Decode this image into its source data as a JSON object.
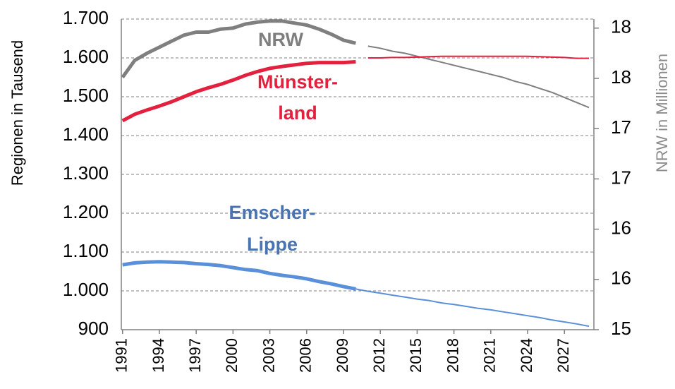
{
  "chart_data": {
    "type": "line",
    "x": [
      1991,
      1992,
      1993,
      1994,
      1995,
      1996,
      1997,
      1998,
      1999,
      2000,
      2001,
      2002,
      2003,
      2004,
      2005,
      2006,
      2007,
      2008,
      2009,
      2010,
      2011,
      2012,
      2013,
      2014,
      2015,
      2016,
      2017,
      2018,
      2019,
      2020,
      2021,
      2022,
      2023,
      2024,
      2025,
      2026,
      2027,
      2028,
      2029
    ],
    "xlim": [
      1990.9,
      2029.4
    ],
    "xticks": [
      1991,
      1994,
      1997,
      2000,
      2003,
      2006,
      2009,
      2012,
      2015,
      2018,
      2021,
      2024,
      2027
    ],
    "ylabel": "Regionen in Tausend",
    "y2label": "NRW in Millionen",
    "ylim": [
      900,
      1700
    ],
    "yticks": [
      900,
      {
        "value": 1000,
        "label": "1.000"
      },
      {
        "value": 1100,
        "label": "1.100"
      },
      {
        "value": 1200,
        "label": "1.200"
      },
      {
        "value": 1300,
        "label": "1.300"
      },
      {
        "value": 1400,
        "label": "1.400"
      },
      {
        "value": 1500,
        "label": "1.500"
      },
      {
        "value": 1600,
        "label": "1.600"
      },
      {
        "value": 1700,
        "label": "1.700"
      }
    ],
    "y2lim": [
      15,
      18.09
    ],
    "y2ticks": [
      15,
      {
        "value": 15.5,
        "label": "16"
      },
      16,
      {
        "value": 16.5,
        "label": "17"
      },
      17,
      {
        "value": 17.5,
        "label": "18"
      },
      18
    ],
    "grid": true,
    "series": [
      {
        "label_lines": [
          "NRW"
        ],
        "color": "#7f7f7f",
        "label_color": "#7f7f7f",
        "axis": "y2",
        "values": [
          17.51,
          17.68,
          17.75,
          17.81,
          17.87,
          17.93,
          17.96,
          17.96,
          17.99,
          18.0,
          18.04,
          18.06,
          18.07,
          18.07,
          18.05,
          18.03,
          17.99,
          17.94,
          17.88,
          17.85,
          null,
          null,
          null,
          null,
          null,
          null,
          null,
          null,
          null,
          null,
          null,
          null,
          null,
          null,
          null,
          null,
          null,
          null,
          null
        ],
        "projection": [
          null,
          null,
          null,
          null,
          null,
          null,
          null,
          null,
          null,
          null,
          null,
          null,
          null,
          null,
          null,
          null,
          null,
          null,
          null,
          null,
          17.82,
          17.8,
          17.77,
          17.75,
          17.72,
          17.69,
          17.66,
          17.63,
          17.6,
          17.57,
          17.54,
          17.51,
          17.47,
          17.44,
          17.4,
          17.36,
          17.31,
          17.26,
          17.21
        ]
      },
      {
        "label_lines": [
          "Münster-",
          "land"
        ],
        "color": "#e3203e",
        "label_color": "#e3203e",
        "values": [
          1438,
          1455,
          1466,
          1476,
          1487,
          1500,
          1513,
          1523,
          1532,
          1543,
          1555,
          1565,
          1573,
          1578,
          1582,
          1586,
          1588,
          1588,
          1588,
          1590,
          null,
          null,
          null,
          null,
          null,
          null,
          null,
          null,
          null,
          null,
          null,
          null,
          null,
          null,
          null,
          null,
          null,
          null,
          null
        ],
        "projection": [
          null,
          null,
          null,
          null,
          null,
          null,
          null,
          null,
          null,
          null,
          null,
          null,
          null,
          null,
          null,
          null,
          null,
          null,
          null,
          null,
          1600,
          1600,
          1601,
          1601,
          1602,
          1603,
          1604,
          1604,
          1604,
          1604,
          1604,
          1604,
          1604,
          1604,
          1603,
          1602,
          1601,
          1599,
          1599
        ]
      },
      {
        "label_lines": [
          "Emscher-",
          "Lippe"
        ],
        "color": "#5a8fd9",
        "label_color": "#4a73b2",
        "values": [
          1067,
          1072,
          1074,
          1075,
          1074,
          1073,
          1070,
          1068,
          1065,
          1060,
          1055,
          1052,
          1045,
          1040,
          1036,
          1031,
          1024,
          1018,
          1011,
          1005,
          null,
          null,
          null,
          null,
          null,
          null,
          null,
          null,
          null,
          null,
          null,
          null,
          null,
          null,
          null,
          null,
          null,
          null,
          null
        ],
        "projection": [
          null,
          null,
          null,
          null,
          null,
          null,
          null,
          null,
          null,
          null,
          null,
          null,
          null,
          null,
          null,
          null,
          null,
          null,
          null,
          1005,
          999,
          994,
          989,
          984,
          979,
          975,
          969,
          965,
          960,
          955,
          951,
          946,
          941,
          936,
          931,
          925,
          920,
          915,
          909
        ]
      }
    ]
  }
}
